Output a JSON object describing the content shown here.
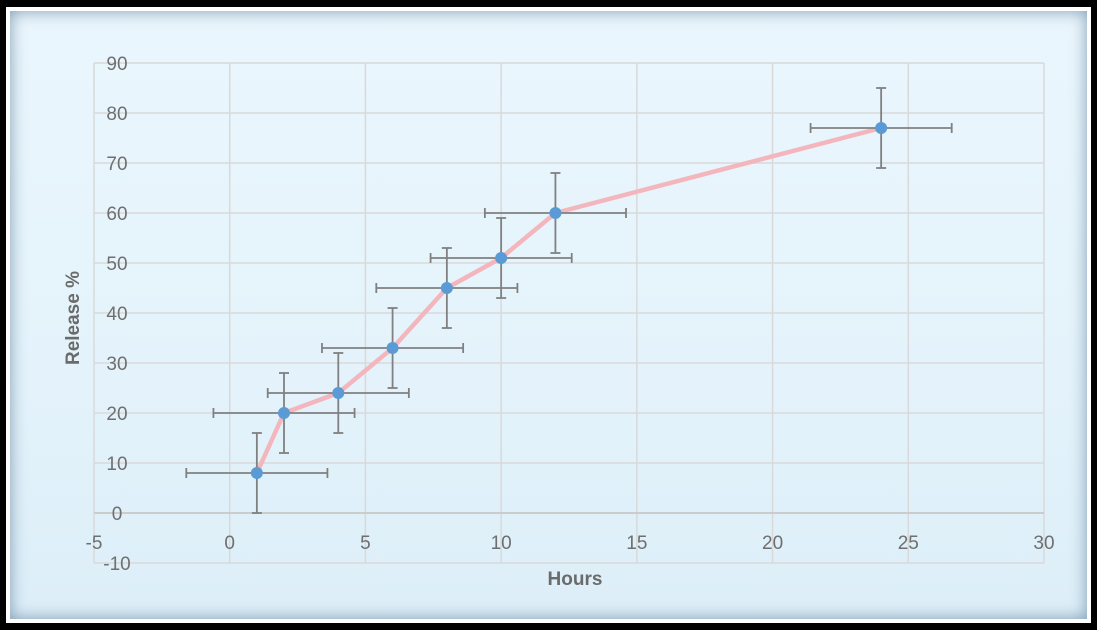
{
  "chart_data": {
    "type": "scatter",
    "title": "",
    "xlabel": "Hours",
    "ylabel": "Release %",
    "xlim": [
      -5,
      30
    ],
    "ylim": [
      -10,
      90
    ],
    "xticks": [
      -5,
      0,
      5,
      10,
      15,
      20,
      25,
      30
    ],
    "yticks": [
      -10,
      0,
      10,
      20,
      30,
      40,
      50,
      60,
      70,
      80,
      90
    ],
    "grid": true,
    "legend": "none",
    "series": [
      {
        "x": [
          1,
          2,
          4,
          6,
          8,
          10,
          12,
          24
        ],
        "y": [
          8,
          20,
          24,
          33,
          45,
          51,
          60,
          77
        ],
        "y_error": [
          8,
          8,
          8,
          8,
          8,
          8,
          8,
          8
        ],
        "x_error": [
          2.6,
          2.6,
          2.6,
          2.6,
          2.6,
          2.6,
          2.6,
          2.6
        ],
        "marker_color": "#5b9bd5",
        "line_color": "#f4b6bd",
        "errorbar_color": "#808080"
      }
    ]
  }
}
